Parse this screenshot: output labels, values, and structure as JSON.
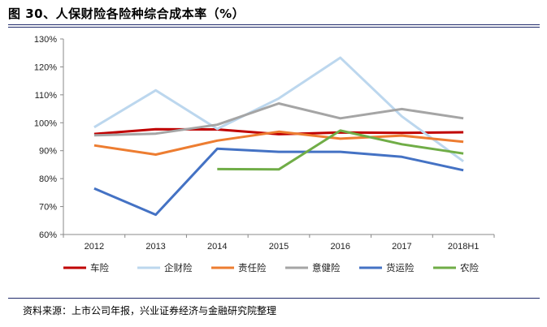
{
  "header": {
    "title": "图 30、人保财险各险种综合成本率（%）"
  },
  "footer": {
    "source": "资料来源：上市公司年报，兴业证券经济与金融研究院整理"
  },
  "chart_data": {
    "type": "line",
    "title": "图 30、人保财险各险种综合成本率（%）",
    "xlabel": "",
    "ylabel": "",
    "categories": [
      "2012",
      "2013",
      "2014",
      "2015",
      "2016",
      "2017",
      "2018H1"
    ],
    "ylim": [
      60,
      130
    ],
    "yticks": [
      60,
      70,
      80,
      90,
      100,
      110,
      120,
      130
    ],
    "ytick_labels": [
      "60%",
      "70%",
      "80%",
      "90%",
      "100%",
      "110%",
      "120%",
      "130%"
    ],
    "grid": false,
    "legend": "bottom",
    "series": [
      {
        "name": "车险",
        "color": "#c00000",
        "values": [
          96.0,
          97.7,
          97.6,
          95.9,
          96.5,
          96.4,
          96.6
        ]
      },
      {
        "name": "企财险",
        "color": "#bcd7ee",
        "values": [
          98.4,
          111.6,
          97.8,
          108.7,
          123.3,
          102.3,
          86.2
        ]
      },
      {
        "name": "责任险",
        "color": "#ed7d31",
        "values": [
          91.9,
          88.6,
          93.6,
          96.8,
          94.3,
          95.4,
          93.2
        ]
      },
      {
        "name": "意健险",
        "color": "#a5a5a5",
        "values": [
          95.5,
          96.1,
          99.3,
          106.9,
          101.6,
          104.9,
          101.6
        ]
      },
      {
        "name": "货运险",
        "color": "#4472c4",
        "values": [
          76.5,
          67.1,
          90.7,
          89.6,
          89.6,
          87.8,
          83.0
        ]
      },
      {
        "name": "农险",
        "color": "#70ad47",
        "values": [
          null,
          null,
          83.4,
          83.3,
          97.2,
          92.3,
          89.0
        ]
      }
    ]
  }
}
